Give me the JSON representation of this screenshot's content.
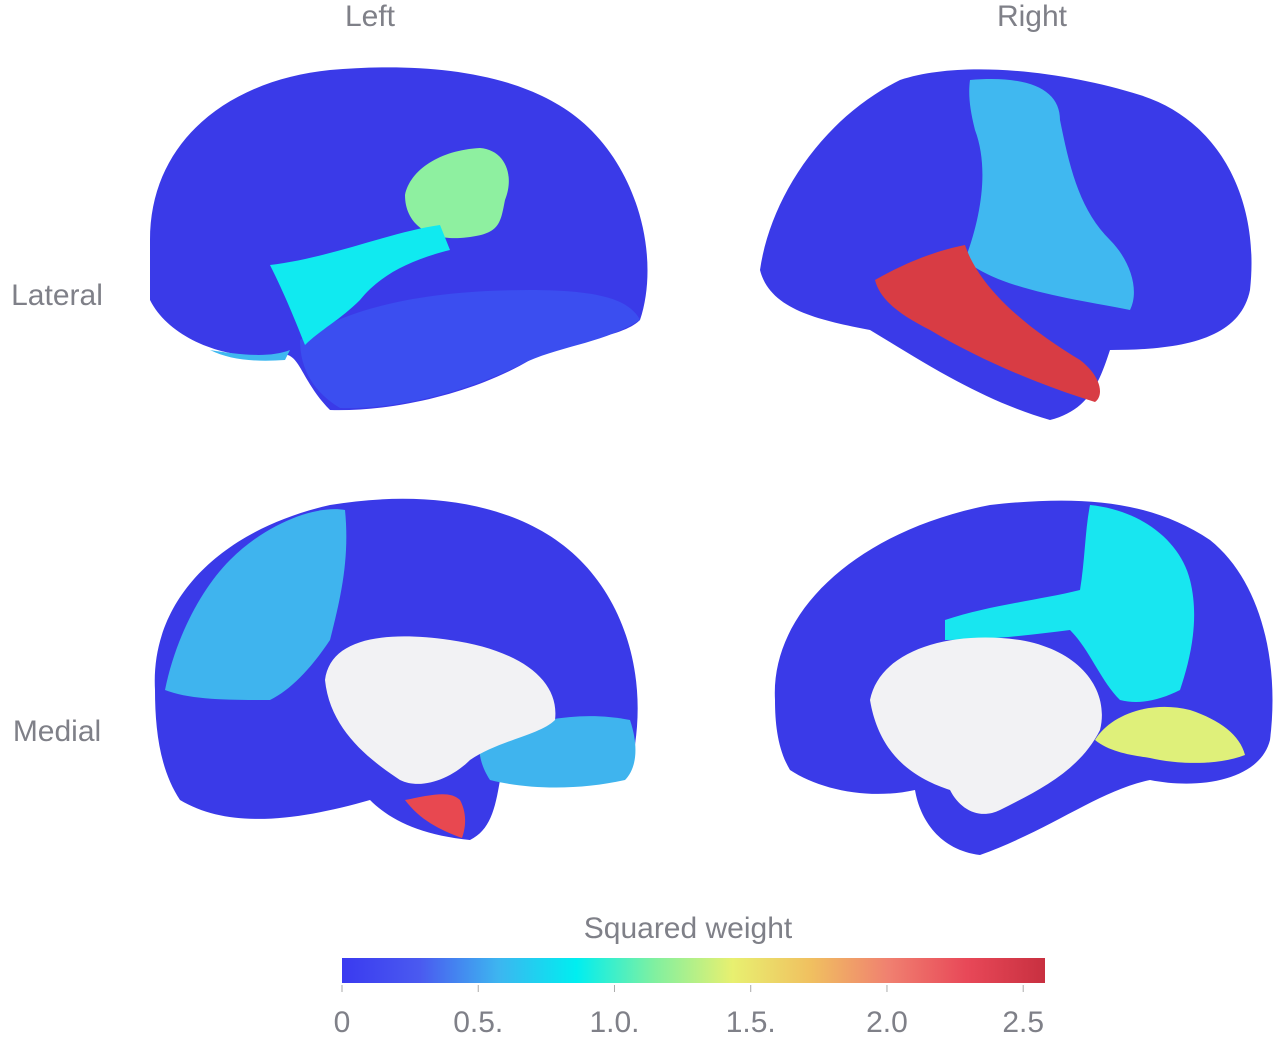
{
  "columns": [
    "Left",
    "Right"
  ],
  "rows": [
    "Lateral",
    "Medial"
  ],
  "colorbar": {
    "title": "Squared weight",
    "range": [
      0,
      2.58
    ],
    "colors": [
      "#3a3af0",
      "#4a5af0",
      "#3db5f0",
      "#00eef0",
      "#80f0a0",
      "#e8f070",
      "#f0c060",
      "#f08070",
      "#e84858",
      "#c83040"
    ],
    "ticks": [
      0,
      {
        "value": 0.5,
        "label": "0.5."
      },
      {
        "value": 1,
        "label": "1.0."
      },
      {
        "value": 1.5,
        "label": "1.5."
      },
      {
        "value": 2,
        "label": "2.0"
      },
      2.5
    ]
  }
}
